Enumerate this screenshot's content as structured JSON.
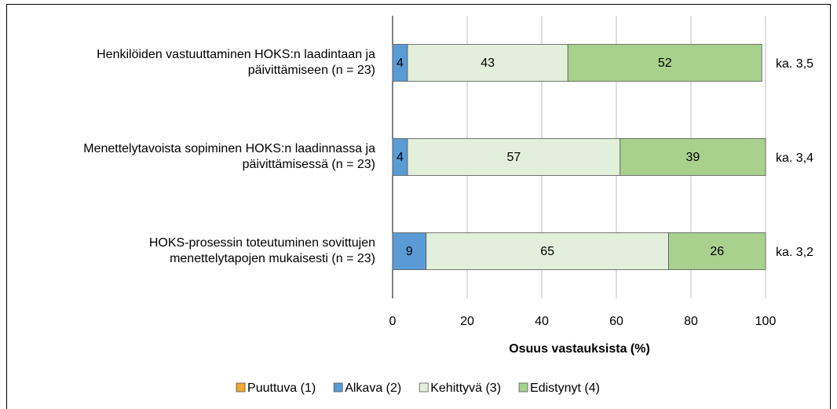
{
  "chart_data": {
    "type": "stacked-bar-horizontal",
    "categories": [
      [
        "Henkilöiden vastuuttaminen HOKS:n laadintaan ja",
        "päivittämiseen (n = 23)"
      ],
      [
        "Menettelytavoista sopiminen HOKS:n laadinnassa ja",
        "päivittämisessä (n = 23)"
      ],
      [
        "HOKS-prosessin toteutuminen sovittujen",
        "menettelytapojen mukaisesti (n = 23)"
      ]
    ],
    "series": [
      {
        "name": "Puuttuva (1)",
        "color": "#f0a830",
        "values": [
          0,
          0,
          0
        ]
      },
      {
        "name": "Alkava (2)",
        "color": "#5b9bd5",
        "values": [
          4,
          4,
          9
        ]
      },
      {
        "name": "Kehittyvä (3)",
        "color": "#e2efda",
        "values": [
          43,
          57,
          65
        ]
      },
      {
        "name": "Edistynyt (4)",
        "color": "#a9d18e",
        "values": [
          52,
          39,
          26
        ]
      }
    ],
    "annotations": [
      "ka. 3,5",
      "ka. 3,4",
      "ka. 3,2"
    ],
    "xlabel": "Osuus vastauksista (%)",
    "xlim": [
      0,
      100
    ],
    "xticks": [
      0,
      20,
      40,
      60,
      80,
      100
    ],
    "grid": true,
    "legend": "bottom"
  }
}
